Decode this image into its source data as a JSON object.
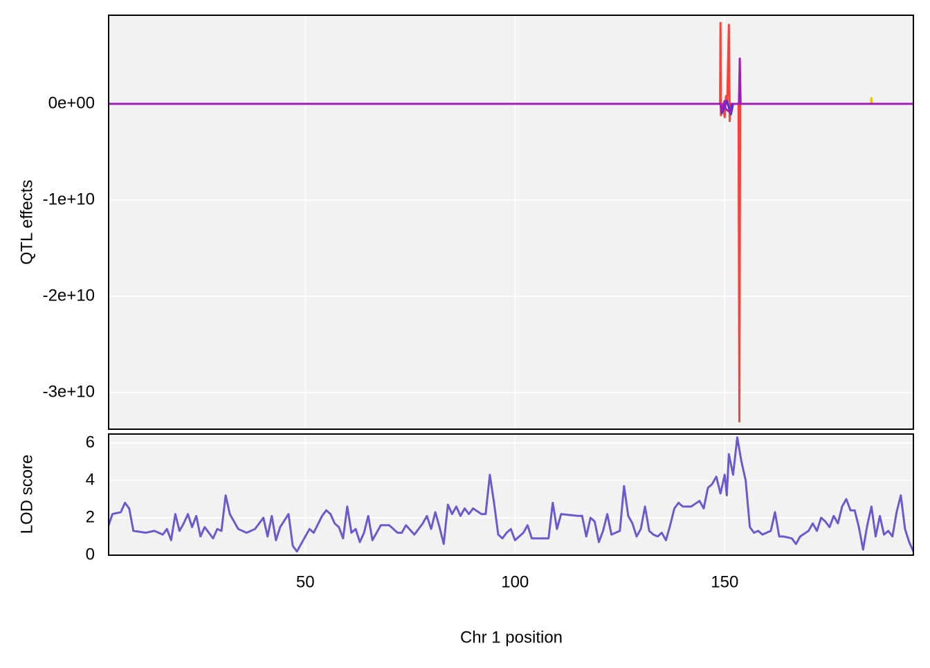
{
  "chart_data": [
    {
      "type": "line",
      "ylabel": "QTL effects",
      "xlim": [
        3.1,
        195
      ],
      "xticks": [
        50,
        100,
        150
      ],
      "ylim": [
        -33800000000,
        9200000000
      ],
      "yticks": [
        {
          "value": 0,
          "label": "0e+00"
        },
        {
          "value": -10000000000,
          "label": "-1e+10"
        },
        {
          "value": -20000000000,
          "label": "-2e+10"
        },
        {
          "value": -30000000000,
          "label": "-3e+10"
        }
      ],
      "grid": true,
      "series": [
        {
          "color": "#e6c600",
          "x": [
            3.1,
            184.9,
            185,
            185.1,
            195
          ],
          "values": [
            0,
            0,
            600000000,
            0,
            0
          ]
        },
        {
          "color": "#f8433b",
          "x": [
            3.1,
            148.9,
            149,
            149.1,
            149.5,
            150,
            150.3,
            150.6,
            151,
            151.2,
            151.4,
            153.3,
            153.5,
            153.7,
            195
          ],
          "values": [
            0,
            0,
            8400000000,
            -1200000000,
            0,
            -1400000000,
            800000000,
            0,
            8200000000,
            -1800000000,
            0,
            0,
            -33000000000,
            0,
            0
          ]
        },
        {
          "color": "#3a3adf",
          "x": [
            3.1,
            149,
            149.3,
            150.5,
            151.5,
            152,
            195
          ],
          "values": [
            0,
            0,
            -1000000000,
            300000000,
            -1100000000,
            0,
            0
          ]
        },
        {
          "color": "#a21cb8",
          "x": [
            3.1,
            149,
            149.2,
            150,
            150.2,
            151.3,
            151.6,
            153.4,
            153.6,
            153.8,
            195
          ],
          "values": [
            0,
            0,
            -800000000,
            300000000,
            -500000000,
            -900000000,
            0,
            0,
            4700000000,
            0,
            0
          ]
        }
      ]
    },
    {
      "type": "line",
      "ylabel": "LOD score",
      "xlabel": "Chr 1 position",
      "xlim": [
        3.1,
        195
      ],
      "xticks": [
        50,
        100,
        150
      ],
      "ylim": [
        0,
        6.48
      ],
      "yticks": [
        0,
        2,
        4,
        6
      ],
      "grid": true,
      "series": [
        {
          "color": "#6a5acd",
          "x": [
            3.1,
            4,
            6,
            7,
            8,
            9,
            12,
            14,
            16,
            17,
            18,
            19,
            20,
            21,
            22,
            23,
            24,
            25,
            26,
            27,
            28,
            29,
            30,
            31,
            32,
            33,
            34,
            36,
            38,
            40,
            41,
            42,
            43,
            44,
            46,
            47,
            48,
            49,
            51,
            52,
            54,
            55,
            56,
            57,
            58,
            59,
            60,
            61,
            62,
            63,
            64,
            65,
            66,
            68,
            70,
            72,
            73,
            74,
            76,
            78,
            79,
            80,
            81,
            82,
            83,
            84,
            85,
            86,
            87,
            88,
            89,
            90,
            92,
            93,
            94,
            95,
            96,
            97,
            98,
            99,
            100,
            101,
            102,
            103,
            104,
            107,
            108,
            109,
            110,
            111,
            115,
            116,
            117,
            118,
            119,
            120,
            121,
            122,
            123,
            125,
            126,
            127,
            128,
            129,
            130,
            131,
            132,
            133,
            134,
            135,
            136,
            137,
            138,
            139,
            140,
            142,
            144,
            145,
            146,
            147,
            148,
            149,
            150,
            150.5,
            151,
            152,
            153,
            154,
            155,
            156,
            157,
            158,
            159,
            161,
            162,
            163,
            164,
            166,
            167,
            168,
            170,
            171,
            172,
            173,
            174,
            175,
            176,
            177,
            178,
            179,
            180,
            181,
            182,
            183,
            184,
            185,
            186,
            187,
            188,
            189,
            190,
            191,
            192,
            193,
            194,
            195
          ],
          "values": [
            1.6,
            2.2,
            2.3,
            2.8,
            2.5,
            1.3,
            1.2,
            1.3,
            1.1,
            1.4,
            0.8,
            2.2,
            1.3,
            1.7,
            2.2,
            1.5,
            2.1,
            1.0,
            1.5,
            1.2,
            0.9,
            1.4,
            1.3,
            3.2,
            2.2,
            1.8,
            1.4,
            1.2,
            1.4,
            2.0,
            1.0,
            2.1,
            0.8,
            1.5,
            2.2,
            0.5,
            0.2,
            0.6,
            1.4,
            1.2,
            2.1,
            2.4,
            2.2,
            1.7,
            1.5,
            0.9,
            2.6,
            1.2,
            1.4,
            0.7,
            1.2,
            2.1,
            0.8,
            1.6,
            1.6,
            1.2,
            1.2,
            1.6,
            1.1,
            1.7,
            2.1,
            1.4,
            2.3,
            1.5,
            0.6,
            2.7,
            2.2,
            2.6,
            2.1,
            2.5,
            2.2,
            2.5,
            2.2,
            2.2,
            4.3,
            2.8,
            1.1,
            0.9,
            1.2,
            1.4,
            0.8,
            1.0,
            1.2,
            1.6,
            0.9,
            0.9,
            0.9,
            2.8,
            1.4,
            2.2,
            2.1,
            2.1,
            1.0,
            2.0,
            1.8,
            0.7,
            1.3,
            2.2,
            1.1,
            1.3,
            3.7,
            2.1,
            1.7,
            1.0,
            1.4,
            2.6,
            1.3,
            1.1,
            1.0,
            1.2,
            0.8,
            1.6,
            2.5,
            2.8,
            2.6,
            2.6,
            2.9,
            2.5,
            3.6,
            3.8,
            4.2,
            3.3,
            4.3,
            3.2,
            5.4,
            4.3,
            6.3,
            5.0,
            4.0,
            1.5,
            1.2,
            1.3,
            1.1,
            1.3,
            2.3,
            1.0,
            1.0,
            0.9,
            0.6,
            1.0,
            1.3,
            1.7,
            1.3,
            2.0,
            1.8,
            1.5,
            2.1,
            1.7,
            2.6,
            3.0,
            2.4,
            2.4,
            1.5,
            0.3,
            1.6,
            2.6,
            1.0,
            2.1,
            1.1,
            1.3,
            1.0,
            2.3,
            3.2,
            1.4,
            0.7,
            0.2
          ]
        }
      ]
    }
  ]
}
